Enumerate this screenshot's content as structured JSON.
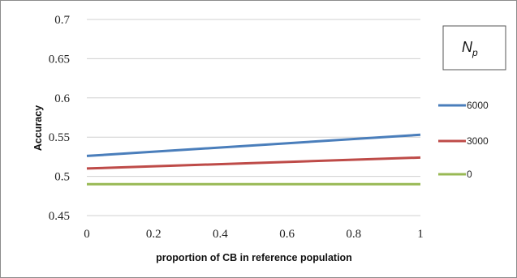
{
  "chart_data": {
    "type": "line",
    "title": "",
    "xlabel": "proportion of CB in reference population",
    "ylabel": "Accuracy",
    "xlim": [
      0,
      1
    ],
    "ylim": [
      0.45,
      0.7
    ],
    "x_ticks": [
      "0",
      "0.2",
      "0.4",
      "0.6",
      "0.8",
      "1"
    ],
    "y_ticks": [
      "0.45",
      "0.5",
      "0.55",
      "0.6",
      "0.65",
      "0.7"
    ],
    "grid": "horizontal",
    "legend": {
      "title_main": "N",
      "title_sub": "p",
      "placement": "right"
    },
    "series": [
      {
        "name": "6000",
        "color": "#4a7ebb",
        "x": [
          0,
          1
        ],
        "y": [
          0.526,
          0.553
        ]
      },
      {
        "name": "3000",
        "color": "#be4b48",
        "x": [
          0,
          1
        ],
        "y": [
          0.51,
          0.524
        ]
      },
      {
        "name": "0",
        "color": "#98b954",
        "x": [
          0,
          1
        ],
        "y": [
          0.49,
          0.49
        ]
      }
    ]
  }
}
